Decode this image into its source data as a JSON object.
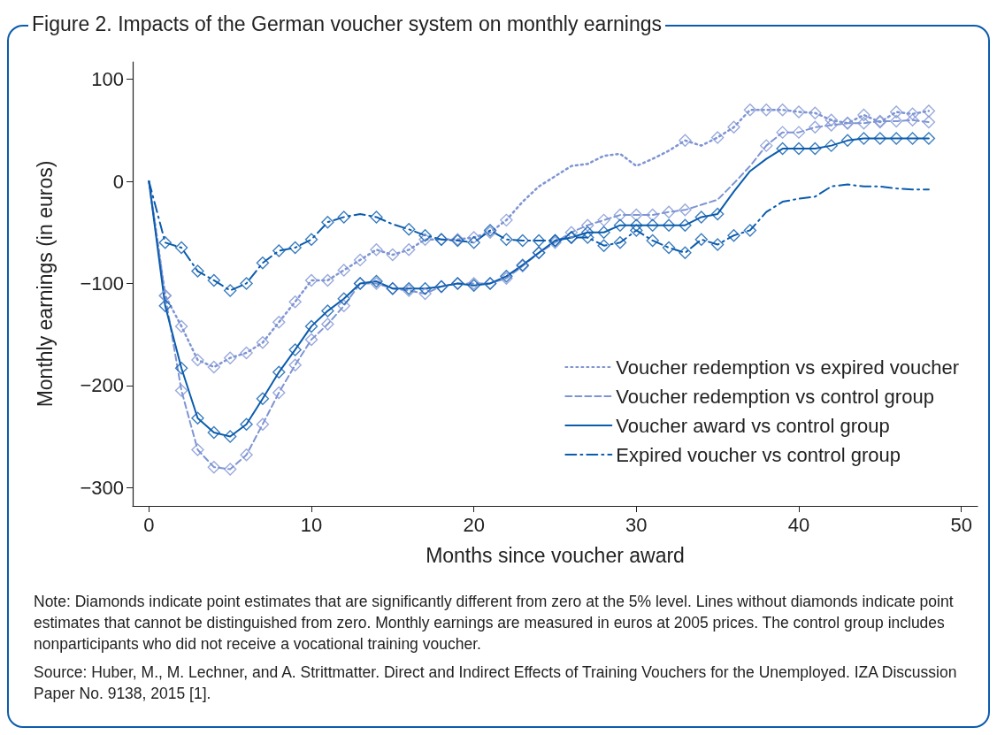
{
  "chart_data": {
    "type": "line",
    "title": "Figure 2. Impacts of the German voucher system on monthly earnings",
    "xlabel": "Months since voucher award",
    "ylabel": "Monthly earnings (in euros)",
    "x": [
      0,
      1,
      2,
      3,
      4,
      5,
      6,
      7,
      8,
      9,
      10,
      11,
      12,
      13,
      14,
      15,
      16,
      17,
      18,
      19,
      20,
      21,
      22,
      23,
      24,
      25,
      26,
      27,
      28,
      29,
      30,
      31,
      32,
      33,
      34,
      35,
      36,
      37,
      38,
      39,
      40,
      41,
      42,
      43,
      44,
      45,
      46,
      47,
      48
    ],
    "series": [
      {
        "name": "Voucher redemption vs expired voucher",
        "color": "#7f95d3",
        "line_style": "dotted",
        "marker": "none",
        "values": [
          0,
          -112,
          -142,
          -175,
          -182,
          -173,
          -168,
          -158,
          -138,
          -118,
          -97,
          -97,
          -87,
          -77,
          -67,
          -72,
          -67,
          -57,
          -57,
          -57,
          -55,
          -50,
          -38,
          -20,
          -5,
          5,
          15,
          17,
          25,
          27,
          15,
          22,
          30,
          40,
          35,
          43,
          53,
          70,
          70,
          70,
          68,
          67,
          60,
          57,
          65,
          58,
          68,
          66,
          69
        ]
      },
      {
        "name": "Voucher redemption vs control group",
        "color": "#7f95d3",
        "line_style": "dashed",
        "marker": "none",
        "values": [
          0,
          -112,
          -205,
          -263,
          -280,
          -282,
          -268,
          -238,
          -207,
          -180,
          -155,
          -140,
          -122,
          -100,
          -100,
          -105,
          -107,
          -110,
          -103,
          -100,
          -100,
          -100,
          -95,
          -83,
          -70,
          -60,
          -50,
          -43,
          -38,
          -33,
          -33,
          -33,
          -30,
          -28,
          -23,
          -18,
          -2,
          15,
          35,
          48,
          48,
          53,
          55,
          57,
          57,
          59,
          59,
          60,
          58
        ]
      },
      {
        "name": "Voucher award vs control group",
        "color": "#0b5cad",
        "line_style": "solid",
        "marker": "none",
        "values": [
          0,
          -122,
          -183,
          -232,
          -246,
          -250,
          -238,
          -213,
          -187,
          -165,
          -142,
          -127,
          -115,
          -100,
          -98,
          -105,
          -105,
          -105,
          -103,
          -100,
          -102,
          -100,
          -93,
          -82,
          -70,
          -58,
          -55,
          -50,
          -50,
          -43,
          -43,
          -43,
          -43,
          -43,
          -35,
          -32,
          -10,
          10,
          22,
          32,
          32,
          32,
          35,
          40,
          42,
          42,
          42,
          42,
          42
        ]
      },
      {
        "name": "Expired voucher vs control group",
        "color": "#0b5cad",
        "line_style": "dashdot",
        "marker": "none",
        "values": [
          0,
          -60,
          -65,
          -88,
          -97,
          -107,
          -100,
          -80,
          -68,
          -65,
          -57,
          -40,
          -35,
          -32,
          -35,
          -42,
          -47,
          -53,
          -57,
          -58,
          -60,
          -48,
          -57,
          -58,
          -58,
          -58,
          -55,
          -55,
          -63,
          -60,
          -48,
          -58,
          -65,
          -70,
          -57,
          -62,
          -53,
          -48,
          -30,
          -20,
          -17,
          -15,
          -5,
          -3,
          -5,
          -5,
          -7,
          -8,
          -8
        ]
      },
      {
        "type": "scatter",
        "color": "#7f95d3",
        "marker": "diamond",
        "x": [
          1,
          2,
          3,
          4,
          5,
          6,
          7,
          8,
          9,
          10,
          11,
          12,
          13,
          14,
          15,
          16,
          17,
          18,
          19,
          20,
          21,
          22,
          33,
          35,
          36,
          37,
          38,
          39,
          40,
          41,
          42,
          43,
          44,
          45,
          46,
          47,
          48
        ],
        "values": [
          -112,
          -142,
          -175,
          -182,
          -173,
          -168,
          -158,
          -138,
          -118,
          -97,
          -97,
          -87,
          -77,
          -67,
          -72,
          -67,
          -57,
          -57,
          -57,
          -55,
          -50,
          -38,
          40,
          43,
          53,
          70,
          70,
          70,
          68,
          67,
          60,
          57,
          65,
          58,
          68,
          66,
          69
        ]
      },
      {
        "type": "scatter",
        "color": "#7f95d3",
        "marker": "diamond",
        "x": [
          1,
          2,
          3,
          4,
          5,
          6,
          7,
          8,
          9,
          10,
          11,
          12,
          13,
          14,
          15,
          16,
          17,
          18,
          19,
          20,
          21,
          22,
          23,
          24,
          25,
          26,
          27,
          28,
          29,
          30,
          31,
          32,
          33,
          38,
          39,
          40,
          41,
          42,
          43,
          44,
          45,
          46,
          47,
          48
        ],
        "values": [
          -112,
          -205,
          -263,
          -280,
          -282,
          -268,
          -238,
          -207,
          -180,
          -155,
          -140,
          -122,
          -100,
          -100,
          -105,
          -107,
          -110,
          -103,
          -100,
          -100,
          -100,
          -95,
          -83,
          -70,
          -60,
          -50,
          -43,
          -38,
          -33,
          -33,
          -33,
          -30,
          -28,
          35,
          48,
          48,
          53,
          55,
          57,
          57,
          59,
          59,
          60,
          58
        ]
      },
      {
        "type": "scatter",
        "color": "#0b5cad",
        "marker": "diamond",
        "x": [
          1,
          2,
          3,
          4,
          5,
          6,
          7,
          8,
          9,
          10,
          11,
          12,
          13,
          14,
          15,
          16,
          17,
          18,
          19,
          20,
          21,
          22,
          23,
          24,
          25,
          26,
          27,
          28,
          29,
          30,
          31,
          32,
          33,
          34,
          35,
          39,
          40,
          41,
          42,
          43,
          44,
          45,
          46,
          47,
          48
        ],
        "values": [
          -122,
          -183,
          -232,
          -246,
          -250,
          -238,
          -213,
          -187,
          -165,
          -142,
          -127,
          -115,
          -100,
          -98,
          -105,
          -105,
          -105,
          -103,
          -100,
          -102,
          -100,
          -93,
          -82,
          -70,
          -58,
          -55,
          -50,
          -50,
          -43,
          -43,
          -43,
          -43,
          -43,
          -35,
          -32,
          32,
          32,
          32,
          35,
          40,
          42,
          42,
          42,
          42,
          42
        ]
      },
      {
        "type": "scatter",
        "color": "#0b5cad",
        "marker": "diamond",
        "x": [
          1,
          2,
          3,
          4,
          5,
          6,
          7,
          8,
          9,
          10,
          11,
          12,
          14,
          16,
          17,
          18,
          19,
          20,
          21,
          22,
          23,
          24,
          25,
          26,
          27,
          28,
          29,
          30,
          31,
          32,
          33,
          34,
          35,
          36,
          37
        ],
        "values": [
          -60,
          -65,
          -88,
          -97,
          -107,
          -100,
          -80,
          -68,
          -65,
          -57,
          -40,
          -35,
          -35,
          -47,
          -53,
          -57,
          -58,
          -60,
          -48,
          -57,
          -58,
          -58,
          -58,
          -55,
          -55,
          -63,
          -60,
          -48,
          -58,
          -65,
          -70,
          -57,
          -62,
          -53,
          -48
        ]
      }
    ],
    "xlim": [
      -1,
      51
    ],
    "xticks": [
      0,
      10,
      20,
      30,
      40,
      50
    ],
    "ylim": [
      -318,
      117
    ],
    "yticks": [
      {
        "value": -300,
        "label": "−300"
      },
      {
        "value": -200,
        "label": "−200"
      },
      {
        "value": -100,
        "label": "−100"
      },
      0,
      100
    ],
    "grid": false,
    "legend": "bottom right",
    "annotations": [
      "Note: Diamonds indicate point estimates that are significantly different from zero at the 5% level. Lines without diamonds indicate point estimates that cannot be distinguished from zero. Monthly earnings are measured in euros at 2005 prices. The control group includes nonparticipants who did not receive a vocational training voucher.",
      "Source: Huber, M., M. Lechner, and A. Strittmatter. Direct and Indirect Effects of Training Vouchers for the Unemployed. IZA Discussion Paper No. 9138, 2015 [1]."
    ]
  }
}
